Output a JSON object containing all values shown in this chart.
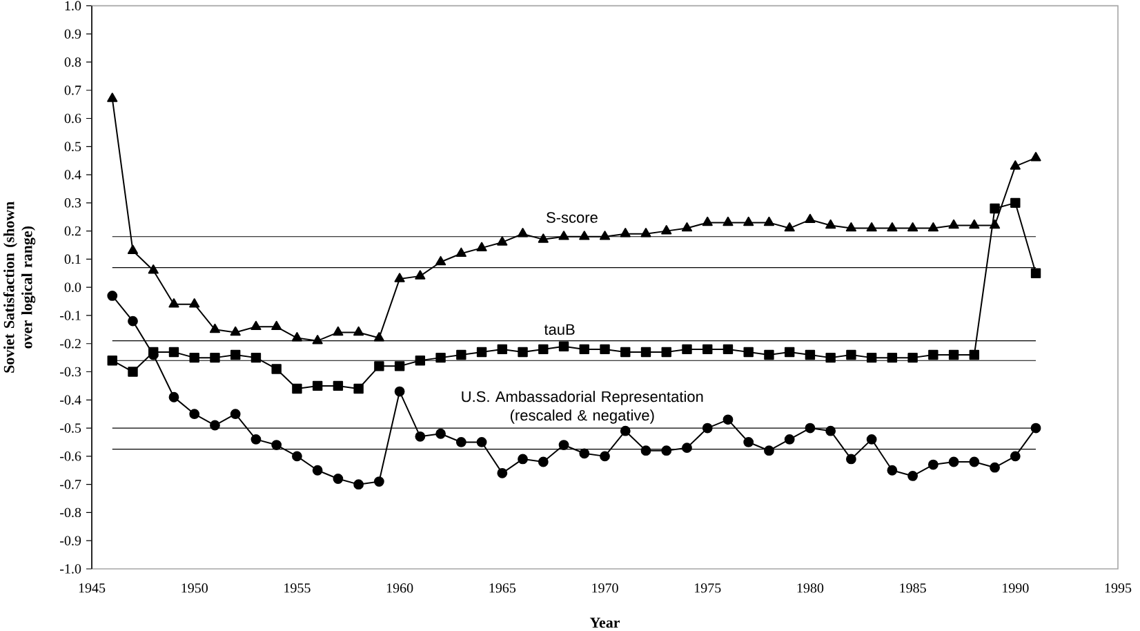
{
  "chart_data": {
    "type": "line",
    "xlabel": "Year",
    "ylabel": "Soviet Satisfaction (shown over logical range)",
    "x": [
      1946,
      1947,
      1948,
      1949,
      1950,
      1951,
      1952,
      1953,
      1954,
      1955,
      1956,
      1957,
      1958,
      1959,
      1960,
      1961,
      1962,
      1963,
      1964,
      1965,
      1966,
      1967,
      1968,
      1969,
      1970,
      1971,
      1972,
      1973,
      1974,
      1975,
      1976,
      1977,
      1978,
      1979,
      1980,
      1981,
      1982,
      1983,
      1984,
      1985,
      1986,
      1987,
      1988,
      1989,
      1990,
      1991
    ],
    "series": [
      {
        "name": "S-score",
        "color": "#000000",
        "marker": "triangle",
        "values": [
          0.67,
          0.13,
          0.06,
          -0.06,
          -0.06,
          -0.15,
          -0.16,
          -0.14,
          -0.14,
          -0.18,
          -0.19,
          -0.16,
          -0.16,
          -0.18,
          0.03,
          0.04,
          0.09,
          0.12,
          0.14,
          0.16,
          0.19,
          0.17,
          0.18,
          0.18,
          0.18,
          0.19,
          0.19,
          0.2,
          0.21,
          0.23,
          0.23,
          0.23,
          0.23,
          0.21,
          0.24,
          0.22,
          0.21,
          0.21,
          0.21,
          0.21,
          0.21,
          0.22,
          0.22,
          0.22,
          0.43,
          0.46
        ]
      },
      {
        "name": "tauB",
        "color": "#000000",
        "marker": "square",
        "values": [
          -0.26,
          -0.3,
          -0.23,
          -0.23,
          -0.25,
          -0.25,
          -0.24,
          -0.25,
          -0.29,
          -0.36,
          -0.35,
          -0.35,
          -0.36,
          -0.28,
          -0.28,
          -0.26,
          -0.25,
          -0.24,
          -0.23,
          -0.22,
          -0.23,
          -0.22,
          -0.21,
          -0.22,
          -0.22,
          -0.23,
          -0.23,
          -0.23,
          -0.22,
          -0.22,
          -0.22,
          -0.23,
          -0.24,
          -0.23,
          -0.24,
          -0.25,
          -0.24,
          -0.25,
          -0.25,
          -0.25,
          -0.24,
          -0.24,
          -0.24,
          0.28,
          0.3,
          0.05
        ]
      },
      {
        "name": "U.S. Ambassadorial Representation (rescaled & negative)",
        "color": "#000000",
        "marker": "circle",
        "values": [
          -0.03,
          -0.12,
          -0.24,
          -0.39,
          -0.45,
          -0.49,
          -0.45,
          -0.54,
          -0.56,
          -0.6,
          -0.65,
          -0.68,
          -0.7,
          -0.69,
          -0.37,
          -0.53,
          -0.52,
          -0.55,
          -0.55,
          -0.66,
          -0.61,
          -0.62,
          -0.56,
          -0.59,
          -0.6,
          -0.51,
          -0.58,
          -0.58,
          -0.57,
          -0.5,
          -0.47,
          -0.55,
          -0.58,
          -0.54,
          -0.5,
          -0.51,
          -0.61,
          -0.54,
          -0.65,
          -0.67,
          -0.63,
          -0.62,
          -0.62,
          -0.64,
          -0.6,
          -0.5
        ]
      }
    ],
    "line_style": "solid",
    "ref_lines": [
      {
        "axis": "y",
        "value": 0.18,
        "color": "#000000"
      },
      {
        "axis": "y",
        "value": 0.07,
        "color": "#000000"
      },
      {
        "axis": "y",
        "value": -0.19,
        "color": "#000000"
      },
      {
        "axis": "y",
        "value": -0.26,
        "color": "#000000"
      },
      {
        "axis": "y",
        "value": -0.5,
        "color": "#000000"
      },
      {
        "axis": "y",
        "value": -0.575,
        "color": "#000000"
      }
    ],
    "xlim": [
      1945,
      1995
    ],
    "xticks": [
      1945,
      1950,
      1955,
      1960,
      1965,
      1970,
      1975,
      1980,
      1985,
      1990,
      1995
    ],
    "ylim": [
      -1.0,
      1.0
    ],
    "yticks": [
      {
        "value": -1.0,
        "label": "-1.0"
      },
      {
        "value": -0.9,
        "label": "-0.9"
      },
      {
        "value": -0.8,
        "label": "-0.8"
      },
      {
        "value": -0.7,
        "label": "-0.7"
      },
      {
        "value": -0.6,
        "label": "-0.6"
      },
      {
        "value": -0.5,
        "label": "-0.5"
      },
      {
        "value": -0.4,
        "label": "-0.4"
      },
      {
        "value": -0.3,
        "label": "-0.3"
      },
      {
        "value": -0.2,
        "label": "-0.2"
      },
      {
        "value": -0.1,
        "label": "-0.1"
      },
      {
        "value": 0.0,
        "label": "0.0"
      },
      {
        "value": 0.1,
        "label": "0.1"
      },
      {
        "value": 0.2,
        "label": "0.2"
      },
      {
        "value": 0.3,
        "label": "0.3"
      },
      {
        "value": 0.4,
        "label": "0.4"
      },
      {
        "value": 0.5,
        "label": "0.5"
      },
      {
        "value": 0.6,
        "label": "0.6"
      },
      {
        "value": 0.7,
        "label": "0.7"
      },
      {
        "value": 0.8,
        "label": "0.8"
      },
      {
        "value": 0.9,
        "label": "0.9"
      },
      {
        "value": 1.0,
        "label": "1.0"
      }
    ]
  }
}
